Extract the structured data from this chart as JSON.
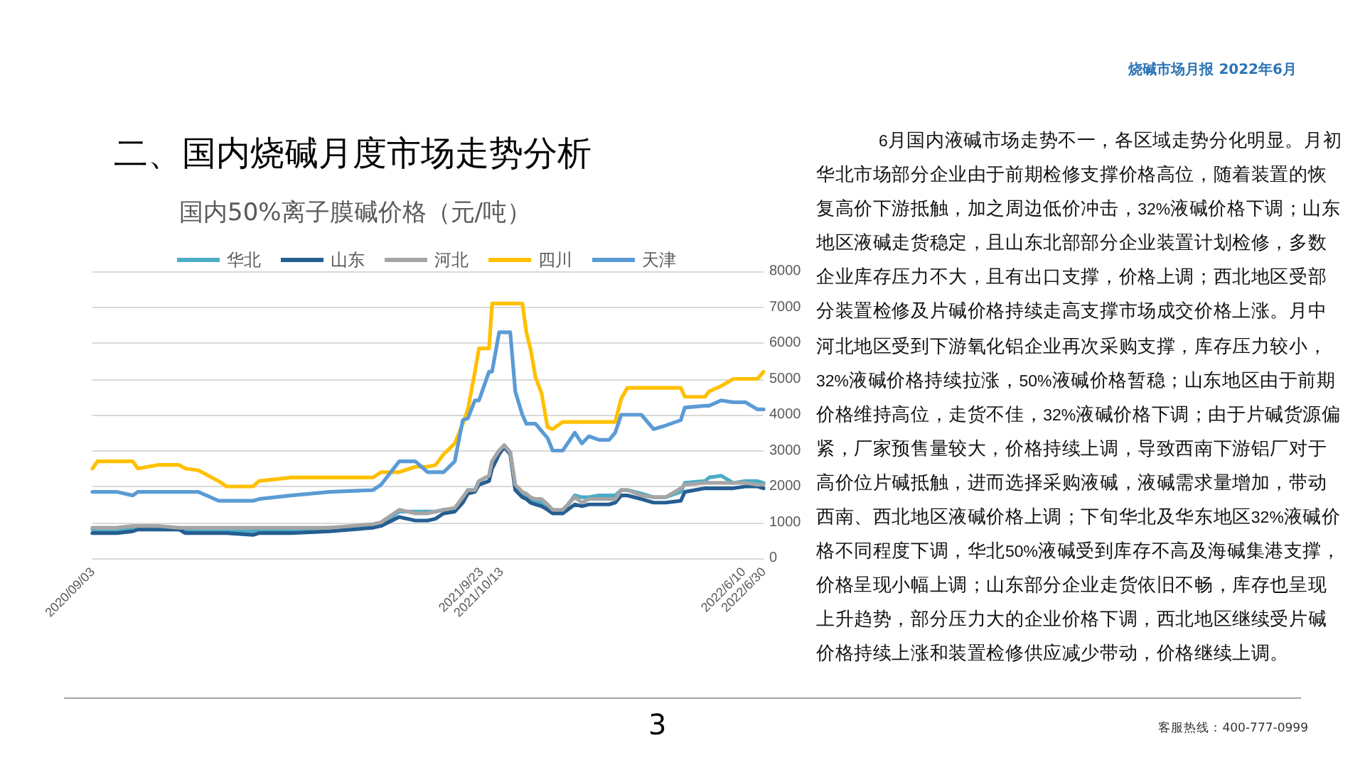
{
  "chart_data": {
    "type": "line",
    "title": "二、国内烧碱月度市场走势分析",
    "subtitle": "国内50%离子膜碱价格（元/吨）",
    "annotations": [
      "烧碱市场月报 2022年6月",
      "6月国内液碱市场走势不一，各区域走势分化明显。月初华北市场部分企业由于前期检修支撑价格高位，随着装置的恢复高价下游抵触，加之周边低价冲击，32%液碱价格下调；山东地区液碱走货稳定，且山东北部部分企业装置计划检修，多数企业库存压力不大，且有出口支撑，价格上调；西北地区受部分装置检修及片碱价格持续走高支撑市场成交价格上涨。月中河北地区受到下游氧化铝企业再次采购支撑，库存压力较小，32%液碱价格持续拉涨，50%液碱价格暂稳；山东地区由于前期价格维持高位，走货不佳，32%液碱价格下调；由于片碱货源偏紧，厂家预售量较大，价格持续上调，导致西南下游铝厂对于高价位片碱抵触，进而选择采购液碱，液碱需求量增加，带动西南、西北地区液碱价格上调；下旬华北及华东地区32%液碱价格不同程度下调，华北50%液碱受到库存不高及海碱集港支撑，价格呈现小幅上调；山东部分企业走货依旧不畅，库存也呈现上升趋势，部分压力大的企业价格下调，西北地区继续受片碱价格持续上涨和装置检修供应减少带动，价格继续上调。",
      "3",
      "客服热线：400-777-0999"
    ],
    "x": [
      "2020-09-03",
      "2020-09-08",
      "2020-09-27",
      "2020-10-13",
      "2020-10-18",
      "2020-11-07",
      "2020-11-28",
      "2020-12-04",
      "2020-12-17",
      "2021-01-06",
      "2021-01-14",
      "2021-02-09",
      "2021-02-15",
      "2021-03-19",
      "2021-04-26",
      "2021-06-08",
      "2021-06-16",
      "2021-07-04",
      "2021-07-20",
      "2021-08-01",
      "2021-08-09",
      "2021-08-17",
      "2021-08-28",
      "2021-09-05",
      "2021-09-10",
      "2021-09-17",
      "2021-09-21",
      "2021-10-01",
      "2021-10-04",
      "2021-10-11",
      "2021-10-16",
      "2021-10-22",
      "2021-10-27",
      "2021-11-03",
      "2021-11-07",
      "2021-11-11",
      "2021-11-16",
      "2021-11-22",
      "2021-11-28",
      "2021-12-03",
      "2021-12-13",
      "2021-12-25",
      "2022-01-01",
      "2022-01-08",
      "2022-01-18",
      "2022-01-28",
      "2022-02-03",
      "2022-02-09",
      "2022-02-15",
      "2022-03-01",
      "2022-03-13",
      "2022-03-25",
      "2022-04-09",
      "2022-04-13",
      "2022-05-03",
      "2022-05-07",
      "2022-05-19",
      "2022-05-31",
      "2022-06-12",
      "2022-06-24",
      "2022-06-30"
    ],
    "series": [
      {
        "name": "华北",
        "color": "#4bacc6",
        "values": [
          800,
          750,
          750,
          850,
          900,
          850,
          800,
          800,
          750,
          750,
          750,
          750,
          800,
          800,
          850,
          900,
          950,
          1300,
          1300,
          1300,
          1300,
          1350,
          1350,
          1650,
          1900,
          1900,
          2150,
          2300,
          2700,
          3000,
          3150,
          2950,
          2000,
          1800,
          1750,
          1650,
          1600,
          1550,
          1450,
          1300,
          1300,
          1750,
          1700,
          1700,
          1750,
          1750,
          1750,
          1900,
          1900,
          1800,
          1700,
          1700,
          1850,
          2100,
          2150,
          2250,
          2300,
          2100,
          2150,
          2150,
          2100
        ]
      },
      {
        "name": "山东",
        "color": "#255e91",
        "values": [
          700,
          700,
          700,
          750,
          800,
          800,
          800,
          700,
          700,
          700,
          700,
          650,
          700,
          700,
          750,
          850,
          900,
          1150,
          1050,
          1050,
          1100,
          1250,
          1300,
          1550,
          1800,
          1850,
          2050,
          2150,
          2500,
          2900,
          3100,
          2900,
          1900,
          1700,
          1650,
          1550,
          1500,
          1450,
          1350,
          1250,
          1250,
          1500,
          1450,
          1500,
          1500,
          1500,
          1550,
          1750,
          1750,
          1650,
          1550,
          1550,
          1600,
          1850,
          1950,
          1950,
          1950,
          1950,
          2000,
          2000,
          1950
        ]
      },
      {
        "name": "河北",
        "color": "#a5a5a5",
        "values": [
          850,
          850,
          850,
          900,
          900,
          900,
          850,
          850,
          850,
          850,
          850,
          850,
          850,
          850,
          850,
          950,
          1000,
          1350,
          1250,
          1250,
          1300,
          1350,
          1400,
          1700,
          1900,
          1900,
          2150,
          2300,
          2700,
          3000,
          3150,
          2950,
          2050,
          1850,
          1800,
          1700,
          1650,
          1650,
          1500,
          1350,
          1350,
          1700,
          1550,
          1650,
          1650,
          1650,
          1650,
          1900,
          1900,
          1750,
          1700,
          1700,
          1950,
          2050,
          2100,
          2100,
          2100,
          2100,
          2100,
          2050,
          2050
        ]
      },
      {
        "name": "四川",
        "color": "#ffc000",
        "values": [
          2500,
          2700,
          2700,
          2700,
          2500,
          2600,
          2600,
          2500,
          2450,
          2150,
          2000,
          2000,
          2150,
          2250,
          2250,
          2250,
          2400,
          2400,
          2550,
          2550,
          2600,
          2900,
          3200,
          3750,
          4150,
          5200,
          5850,
          5850,
          7100,
          7100,
          7100,
          7100,
          7100,
          7100,
          6300,
          5850,
          5050,
          4600,
          3650,
          3600,
          3800,
          3800,
          3800,
          3800,
          3800,
          3800,
          3800,
          4450,
          4750,
          4750,
          4750,
          4750,
          4750,
          4500,
          4500,
          4650,
          4800,
          5000,
          5000,
          5000,
          5200
        ]
      },
      {
        "name": "天津",
        "color": "#5b9bd5",
        "values": [
          1850,
          1850,
          1850,
          1750,
          1850,
          1850,
          1850,
          1850,
          1850,
          1600,
          1600,
          1600,
          1650,
          1750,
          1850,
          1900,
          2050,
          2700,
          2700,
          2400,
          2400,
          2400,
          2700,
          3850,
          3900,
          4400,
          4400,
          5200,
          5200,
          6300,
          6300,
          6300,
          4650,
          4000,
          3750,
          3750,
          3750,
          3550,
          3350,
          3000,
          3000,
          3500,
          3200,
          3400,
          3300,
          3300,
          3500,
          4000,
          4000,
          4000,
          3600,
          3700,
          3850,
          4200,
          4250,
          4250,
          4400,
          4350,
          4350,
          4150,
          4150
        ]
      }
    ],
    "xlim": [
      "2020-09-03",
      "2022-06-30"
    ],
    "xticks": [
      {
        "value": "2020-09-03",
        "label": "2020/09/03"
      },
      {
        "value": "2021-09-23",
        "label": "2021/9/23"
      },
      {
        "value": "2021-10-13",
        "label": "2021/10/13"
      },
      {
        "value": "2022-06-10",
        "label": "2022/6/10"
      },
      {
        "value": "2022-06-30",
        "label": "2022/6/30"
      }
    ],
    "ylim": [
      0,
      8000
    ],
    "yticks": [
      0,
      1000,
      2000,
      3000,
      4000,
      5000,
      6000,
      7000,
      8000
    ],
    "grid": "y",
    "legend": "top"
  }
}
